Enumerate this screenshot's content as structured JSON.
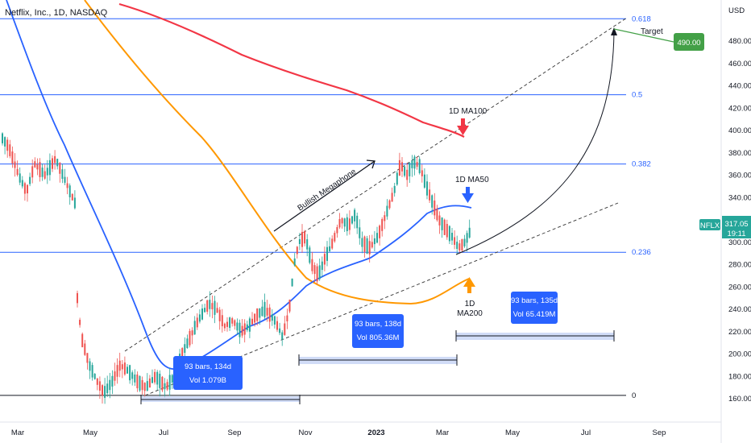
{
  "chart_data": {
    "type": "candlestick",
    "title": "Netflix, Inc., 1D, NASDAQ",
    "currency": "USD",
    "y_ticks": [
      160,
      180,
      200,
      220,
      240,
      260,
      280,
      300,
      320,
      340,
      360,
      380,
      400,
      420,
      440,
      460,
      480
    ],
    "x_ticks": [
      "Mar",
      "May",
      "Jul",
      "Sep",
      "Nov",
      "2023",
      "Mar",
      "May",
      "Jul",
      "Sep"
    ],
    "last_price": {
      "ticker": "NFLX",
      "value": "317.05",
      "time": "19:11"
    },
    "target": {
      "value": "490.00",
      "label": "Target"
    },
    "fib_levels": [
      {
        "label": "0.618",
        "value": 500
      },
      {
        "label": "0.5",
        "value": 432
      },
      {
        "label": "0.382",
        "value": 370
      },
      {
        "label": "0.236",
        "value": 291
      },
      {
        "label": "0",
        "value": 163
      }
    ],
    "moving_averages": [
      {
        "name": "1D MA50",
        "color": "#2962ff"
      },
      {
        "name": "1D MA100",
        "color": "#f23645"
      },
      {
        "name": "1D MA200",
        "color": "#ff9800"
      }
    ],
    "annotations": {
      "megaphone": "Bullish Megaphone",
      "ma100": "1D MA100",
      "ma50": "1D MA50",
      "ma200_line1": "1D",
      "ma200_line2": "MA200"
    },
    "measure_boxes": [
      {
        "line1": "93 bars, 134d",
        "line2": "Vol 1.079B"
      },
      {
        "line1": "93 bars, 138d",
        "line2": "Vol 805.36M"
      },
      {
        "line1": "93 bars, 135d",
        "line2": "Vol 65.419M"
      }
    ],
    "colors": {
      "up": "#26a69a",
      "down": "#ef5350",
      "fib": "#2962ff",
      "target_box": "#43a047"
    }
  }
}
